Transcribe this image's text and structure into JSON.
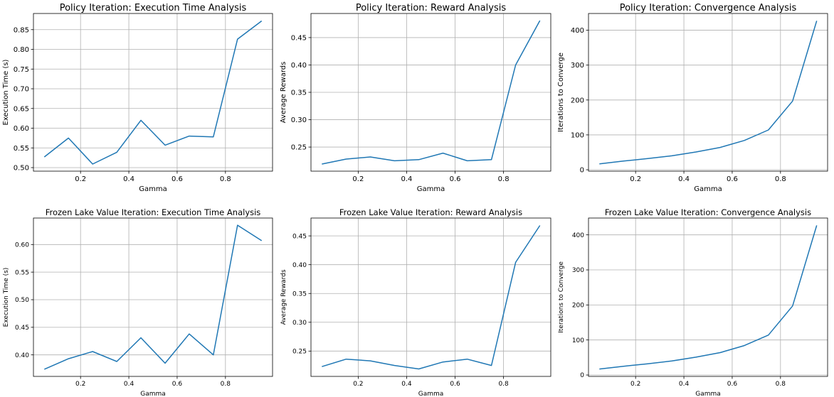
{
  "colors": {
    "line": "#1f77b4",
    "grid": "#b0b0b0",
    "axis": "#000000"
  },
  "chart_data": [
    {
      "type": "line",
      "title": "Policy Iteration: Execution Time Analysis",
      "xlabel": "Gamma",
      "ylabel": "Execution Time (s)",
      "x": [
        0.05,
        0.15,
        0.25,
        0.35,
        0.45,
        0.55,
        0.65,
        0.75,
        0.85,
        0.95
      ],
      "series": [
        {
          "values": [
            0.527,
            0.575,
            0.509,
            0.539,
            0.62,
            0.557,
            0.58,
            0.578,
            0.826,
            0.872
          ]
        }
      ],
      "xticks": [
        0.2,
        0.4,
        0.6,
        0.8
      ],
      "xtick_labels": [
        "0.2",
        "0.4",
        "0.6",
        "0.8"
      ],
      "yticks": [
        0.5,
        0.55,
        0.6,
        0.65,
        0.7,
        0.75,
        0.8,
        0.85
      ],
      "ytick_labels": [
        "0.50",
        "0.55",
        "0.60",
        "0.65",
        "0.70",
        "0.75",
        "0.80",
        "0.85"
      ],
      "xlim": [
        0.005,
        0.995
      ],
      "ylim": [
        0.491,
        0.891
      ],
      "grid": true
    },
    {
      "type": "line",
      "title": "Policy Iteration: Reward Analysis",
      "xlabel": "Gamma",
      "ylabel": "Average Rewards",
      "x": [
        0.05,
        0.15,
        0.25,
        0.35,
        0.45,
        0.55,
        0.65,
        0.75,
        0.85,
        0.95
      ],
      "series": [
        {
          "values": [
            0.219,
            0.228,
            0.232,
            0.225,
            0.227,
            0.239,
            0.225,
            0.227,
            0.4,
            0.481
          ]
        }
      ],
      "xticks": [
        0.2,
        0.4,
        0.6,
        0.8
      ],
      "xtick_labels": [
        "0.2",
        "0.4",
        "0.6",
        "0.8"
      ],
      "yticks": [
        0.25,
        0.3,
        0.35,
        0.4,
        0.45
      ],
      "ytick_labels": [
        "0.25",
        "0.30",
        "0.35",
        "0.40",
        "0.45"
      ],
      "xlim": [
        0.005,
        0.995
      ],
      "ylim": [
        0.206,
        0.494
      ],
      "grid": true
    },
    {
      "type": "line",
      "title": "Policy Iteration: Convergence Analysis",
      "xlabel": "Gamma",
      "ylabel": "Iterations to Converge",
      "x": [
        0.05,
        0.15,
        0.25,
        0.35,
        0.45,
        0.55,
        0.65,
        0.75,
        0.85,
        0.95
      ],
      "series": [
        {
          "values": [
            17,
            25,
            32,
            40,
            51,
            64,
            84,
            114,
            197,
            427
          ]
        }
      ],
      "xticks": [
        0.2,
        0.4,
        0.6,
        0.8
      ],
      "xtick_labels": [
        "0.2",
        "0.4",
        "0.6",
        "0.8"
      ],
      "yticks": [
        0,
        100,
        200,
        300,
        400
      ],
      "ytick_labels": [
        "0",
        "100",
        "200",
        "300",
        "400"
      ],
      "xlim": [
        0.005,
        0.995
      ],
      "ylim": [
        -4,
        448
      ],
      "grid": true
    },
    {
      "type": "line",
      "title": "Frozen Lake Value Iteration: Execution Time Analysis",
      "xlabel": "Gamma",
      "ylabel": "Execution Time (s)",
      "x": [
        0.05,
        0.15,
        0.25,
        0.35,
        0.45,
        0.55,
        0.65,
        0.75,
        0.85,
        0.95
      ],
      "series": [
        {
          "values": [
            0.374,
            0.393,
            0.406,
            0.388,
            0.431,
            0.385,
            0.438,
            0.4,
            0.635,
            0.607
          ]
        }
      ],
      "xticks": [
        0.2,
        0.4,
        0.6,
        0.8
      ],
      "xtick_labels": [
        "0.2",
        "0.4",
        "0.6",
        "0.8"
      ],
      "yticks": [
        0.4,
        0.45,
        0.5,
        0.55,
        0.6
      ],
      "ytick_labels": [
        "0.40",
        "0.45",
        "0.50",
        "0.55",
        "0.60"
      ],
      "xlim": [
        0.005,
        0.995
      ],
      "ylim": [
        0.361,
        0.648
      ],
      "grid": true
    },
    {
      "type": "line",
      "title": "Frozen Lake Value Iteration: Reward Analysis",
      "xlabel": "Gamma",
      "ylabel": "Average Rewards",
      "x": [
        0.05,
        0.15,
        0.25,
        0.35,
        0.45,
        0.55,
        0.65,
        0.75,
        0.85,
        0.95
      ],
      "series": [
        {
          "values": [
            0.223,
            0.236,
            0.233,
            0.225,
            0.219,
            0.231,
            0.236,
            0.225,
            0.404,
            0.468
          ]
        }
      ],
      "xticks": [
        0.2,
        0.4,
        0.6,
        0.8
      ],
      "xtick_labels": [
        "0.2",
        "0.4",
        "0.6",
        "0.8"
      ],
      "yticks": [
        0.25,
        0.3,
        0.35,
        0.4,
        0.45
      ],
      "ytick_labels": [
        "0.25",
        "0.30",
        "0.35",
        "0.40",
        "0.45"
      ],
      "xlim": [
        0.005,
        0.995
      ],
      "ylim": [
        0.206,
        0.481
      ],
      "grid": true
    },
    {
      "type": "line",
      "title": "Frozen Lake Value Iteration: Convergence Analysis",
      "xlabel": "Gamma",
      "ylabel": "Iterations to Converge",
      "x": [
        0.05,
        0.15,
        0.25,
        0.35,
        0.45,
        0.55,
        0.65,
        0.75,
        0.85,
        0.95
      ],
      "series": [
        {
          "values": [
            17,
            25,
            32,
            40,
            51,
            64,
            84,
            114,
            197,
            427
          ]
        }
      ],
      "xticks": [
        0.2,
        0.4,
        0.6,
        0.8
      ],
      "xtick_labels": [
        "0.2",
        "0.4",
        "0.6",
        "0.8"
      ],
      "yticks": [
        0,
        100,
        200,
        300,
        400
      ],
      "ytick_labels": [
        "0",
        "100",
        "200",
        "300",
        "400"
      ],
      "xlim": [
        0.005,
        0.995
      ],
      "ylim": [
        -4,
        448
      ],
      "grid": true
    }
  ]
}
